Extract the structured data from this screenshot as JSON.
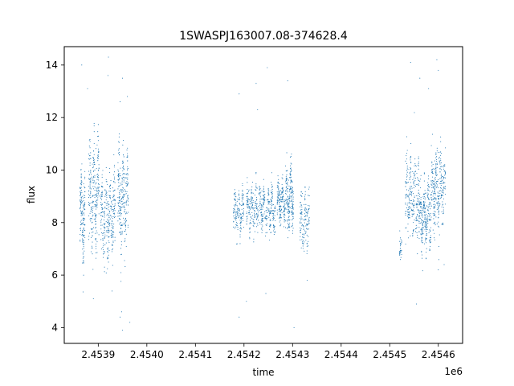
{
  "chart_data": {
    "type": "scatter",
    "title": "1SWASPJ163007.08-374628.4",
    "xlabel": "time",
    "ylabel": "flux",
    "x_offset_label": "1e6",
    "xlim": [
      2453830,
      2454650
    ],
    "ylim": [
      3.4,
      14.7
    ],
    "x_ticks": [
      2453900,
      2454000,
      2454100,
      2454200,
      2454300,
      2454400,
      2454500,
      2454600
    ],
    "x_tick_labels": [
      "2.4539",
      "2.4540",
      "2.4541",
      "2.4542",
      "2.4543",
      "2.4544",
      "2.4545",
      "2.4546"
    ],
    "y_ticks": [
      4,
      6,
      8,
      10,
      12,
      14
    ],
    "y_tick_labels": [
      "4",
      "6",
      "8",
      "10",
      "12",
      "14"
    ],
    "grid": false,
    "marker_color": "#1f77b4",
    "series": [
      {
        "points_note_free": true,
        "clusters": [
          {
            "x_range": [
              2453862,
              2453873
            ],
            "y_center": 8.2,
            "y_spread": 1.4,
            "count": 160
          },
          {
            "x_range": [
              2453880,
              2453902
            ],
            "y_center": 9.0,
            "y_spread": 1.5,
            "count": 260
          },
          {
            "x_range": [
              2453905,
              2453935
            ],
            "y_center": 8.2,
            "y_spread": 1.3,
            "count": 300
          },
          {
            "x_range": [
              2453940,
              2453962
            ],
            "y_center": 8.8,
            "y_spread": 1.5,
            "count": 260
          },
          {
            "x_range": [
              2454178,
              2454200
            ],
            "y_center": 8.4,
            "y_spread": 0.6,
            "count": 160
          },
          {
            "x_range": [
              2454205,
              2454265
            ],
            "y_center": 8.5,
            "y_spread": 0.7,
            "count": 420
          },
          {
            "x_range": [
              2454268,
              2454285
            ],
            "y_center": 8.8,
            "y_spread": 0.6,
            "count": 170
          },
          {
            "x_range": [
              2454285,
              2454302
            ],
            "y_center": 9.0,
            "y_spread": 1.0,
            "count": 220
          },
          {
            "x_range": [
              2454315,
              2454335
            ],
            "y_center": 8.0,
            "y_spread": 0.9,
            "count": 140
          },
          {
            "x_range": [
              2454520,
              2454525
            ],
            "y_center": 6.9,
            "y_spread": 0.4,
            "count": 30
          },
          {
            "x_range": [
              2454532,
              2454560
            ],
            "y_center": 9.0,
            "y_spread": 1.3,
            "count": 240
          },
          {
            "x_range": [
              2454560,
              2454585
            ],
            "y_center": 8.3,
            "y_spread": 1.0,
            "count": 280
          },
          {
            "x_range": [
              2454585,
              2454615
            ],
            "y_center": 9.2,
            "y_spread": 1.2,
            "count": 300
          }
        ],
        "outliers": [
          [
            2453866,
            14.0
          ],
          [
            2453878,
            13.1
          ],
          [
            2453921,
            14.3
          ],
          [
            2453920,
            13.6
          ],
          [
            2453950,
            13.5
          ],
          [
            2453945,
            12.6
          ],
          [
            2453948,
            4.6
          ],
          [
            2453945,
            4.4
          ],
          [
            2453950,
            3.9
          ],
          [
            2453965,
            4.2
          ],
          [
            2453890,
            5.1
          ],
          [
            2453960,
            12.8
          ],
          [
            2454190,
            12.9
          ],
          [
            2454190,
            4.4
          ],
          [
            2454225,
            13.3
          ],
          [
            2454228,
            12.3
          ],
          [
            2454248,
            13.9
          ],
          [
            2454245,
            5.3
          ],
          [
            2454290,
            13.4
          ],
          [
            2454303,
            4.0
          ],
          [
            2454330,
            5.8
          ],
          [
            2454205,
            5.0
          ],
          [
            2454543,
            14.1
          ],
          [
            2454562,
            13.5
          ],
          [
            2454580,
            13.1
          ],
          [
            2454597,
            14.2
          ],
          [
            2454600,
            13.8
          ],
          [
            2454555,
            4.9
          ],
          [
            2454600,
            6.2
          ],
          [
            2454612,
            6.4
          ]
        ]
      }
    ]
  }
}
